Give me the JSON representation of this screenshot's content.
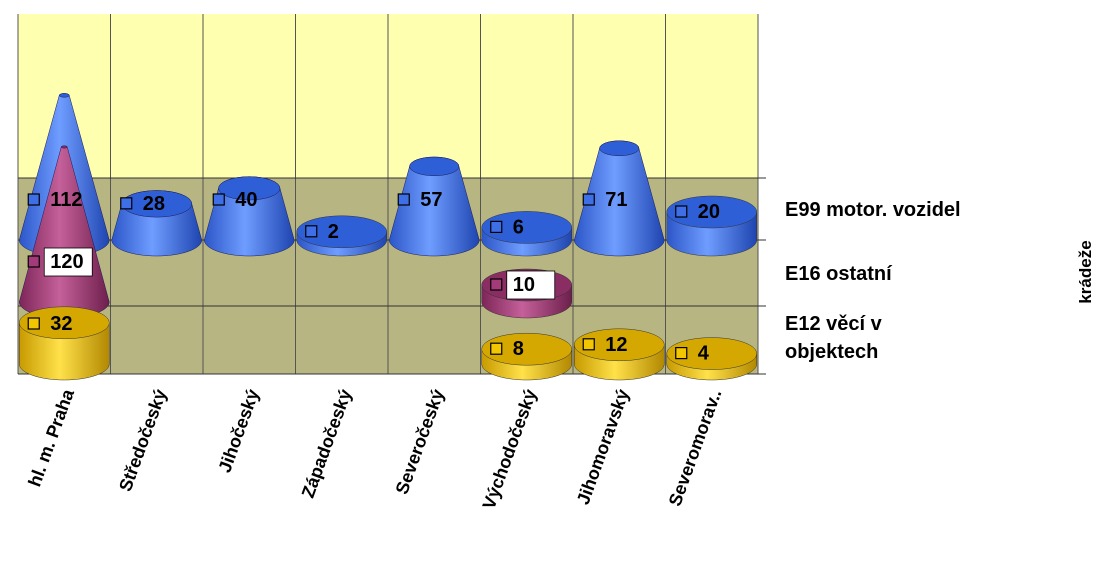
{
  "chart_data": {
    "type": "bar",
    "shape": "3d-cone-and-cylinder",
    "categories": [
      "hl. m. Praha",
      "Středočeský",
      "Jihočeský",
      "Západočeský",
      "Severočeský",
      "Východočeský",
      "Jihomoravský",
      "Severomorav.."
    ],
    "series": [
      {
        "name": "E99 motor. vozidel",
        "values": [
          112,
          28,
          40,
          2,
          57,
          6,
          71,
          20
        ],
        "color": "#3f6fe6"
      },
      {
        "name": "E16 ostatní",
        "values": [
          120,
          null,
          null,
          null,
          null,
          10,
          null,
          null
        ],
        "color": "#a33b7a"
      },
      {
        "name": "E12 věcí  v objektech",
        "values": [
          32,
          null,
          null,
          null,
          null,
          8,
          12,
          4
        ],
        "color": "#e0b800"
      }
    ],
    "series_label_lines": [
      [
        "E99 motor. vozidel"
      ],
      [
        "E16 ostatní"
      ],
      [
        "E12 věcí  v",
        "objektech"
      ]
    ],
    "axis_title": "krádeže",
    "floor_color": "#b7b581",
    "back_wall_color": "#ffffb0",
    "grid": true,
    "legend": "series names on right side"
  }
}
